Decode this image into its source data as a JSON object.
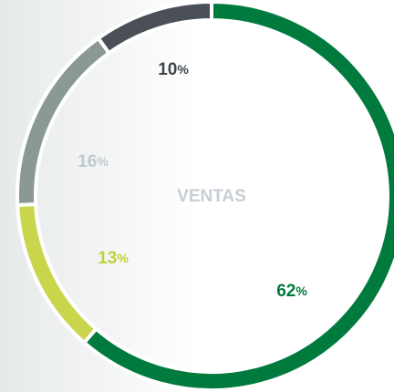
{
  "chart_data": {
    "type": "donut",
    "title": "VENTAS",
    "unit": "%",
    "values": [
      62,
      13,
      16,
      10
    ],
    "colors": [
      "#007a3d",
      "#c9d54b",
      "#8a9995",
      "#4a5056"
    ],
    "label_colors": [
      "#007a3d",
      "#c2cf3e",
      "#bfcad0",
      "#3f454b"
    ]
  }
}
